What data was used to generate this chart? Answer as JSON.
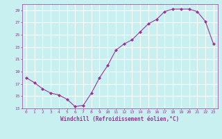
{
  "x": [
    0,
    1,
    2,
    3,
    4,
    5,
    6,
    7,
    8,
    9,
    10,
    11,
    12,
    13,
    14,
    15,
    16,
    17,
    18,
    19,
    20,
    21,
    22,
    23
  ],
  "y": [
    18.0,
    17.2,
    16.2,
    15.5,
    15.2,
    14.5,
    13.3,
    13.5,
    15.5,
    18.0,
    20.0,
    22.5,
    23.5,
    24.2,
    25.5,
    26.8,
    27.5,
    28.8,
    29.2,
    29.2,
    29.2,
    28.8,
    27.2,
    23.5
  ],
  "line_color": "#993399",
  "marker": "D",
  "marker_size": 2,
  "background_color": "#c8f0f0",
  "grid_color": "#ffffff",
  "xlabel": "Windchill (Refroidissement éolien,°C)",
  "xlabel_color": "#993399",
  "tick_color": "#993399",
  "ylim": [
    13,
    30
  ],
  "xlim": [
    -0.5,
    23.5
  ],
  "yticks": [
    13,
    15,
    17,
    19,
    21,
    23,
    25,
    27,
    29
  ],
  "xticks": [
    0,
    1,
    2,
    3,
    4,
    5,
    6,
    7,
    8,
    9,
    10,
    11,
    12,
    13,
    14,
    15,
    16,
    17,
    18,
    19,
    20,
    21,
    22,
    23
  ]
}
